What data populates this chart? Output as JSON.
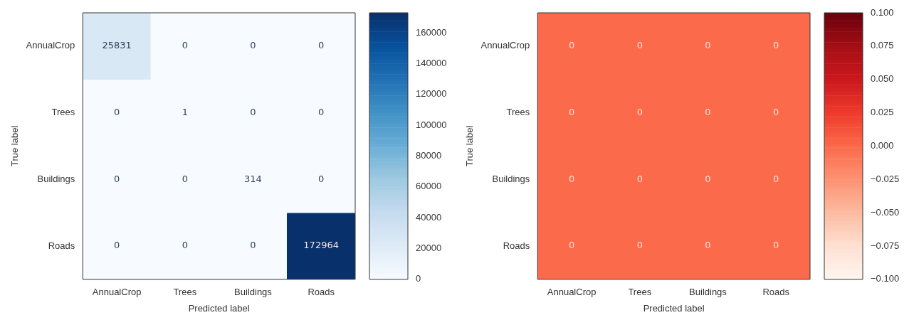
{
  "chart_data": [
    {
      "type": "heatmap",
      "xlabel": "Predicted label",
      "ylabel": "True label",
      "categories": [
        "AnnualCrop",
        "Trees",
        "Buildings",
        "Roads"
      ],
      "y_categories": [
        "AnnualCrop",
        "Trees",
        "Buildings",
        "Roads"
      ],
      "cells": [
        [
          25831,
          0,
          0,
          0
        ],
        [
          0,
          1,
          0,
          0
        ],
        [
          0,
          0,
          314,
          0
        ],
        [
          0,
          0,
          0,
          172964
        ]
      ],
      "color": "#08306b",
      "clim": [
        0,
        172964
      ],
      "cticks": [
        0,
        20000,
        40000,
        60000,
        80000,
        100000,
        120000,
        140000,
        160000
      ],
      "data_labels": true,
      "grid": false,
      "legend": false
    },
    {
      "type": "heatmap",
      "xlabel": "Predicted label",
      "ylabel": "True label",
      "categories": [
        "AnnualCrop",
        "Trees",
        "Buildings",
        "Roads"
      ],
      "y_categories": [
        "AnnualCrop",
        "Trees",
        "Buildings",
        "Roads"
      ],
      "cells": [
        [
          0,
          0,
          0,
          0
        ],
        [
          0,
          0,
          0,
          0
        ],
        [
          0,
          0,
          0,
          0
        ],
        [
          0,
          0,
          0,
          0
        ]
      ],
      "color": "#67000d",
      "clim": [
        -0.1,
        0.1
      ],
      "cticks": [
        {
          "value": -0.1,
          "label": "−0.100"
        },
        {
          "value": -0.075,
          "label": "−0.075"
        },
        {
          "value": -0.05,
          "label": "−0.050"
        },
        {
          "value": -0.025,
          "label": "−0.025"
        },
        {
          "value": 0,
          "label": "0.000"
        },
        {
          "value": 0.025,
          "label": "0.025"
        },
        {
          "value": 0.05,
          "label": "0.050"
        },
        {
          "value": 0.075,
          "label": "0.075"
        },
        {
          "value": 0.1,
          "label": "0.100"
        }
      ],
      "data_labels": true,
      "grid": false,
      "legend": false
    }
  ]
}
